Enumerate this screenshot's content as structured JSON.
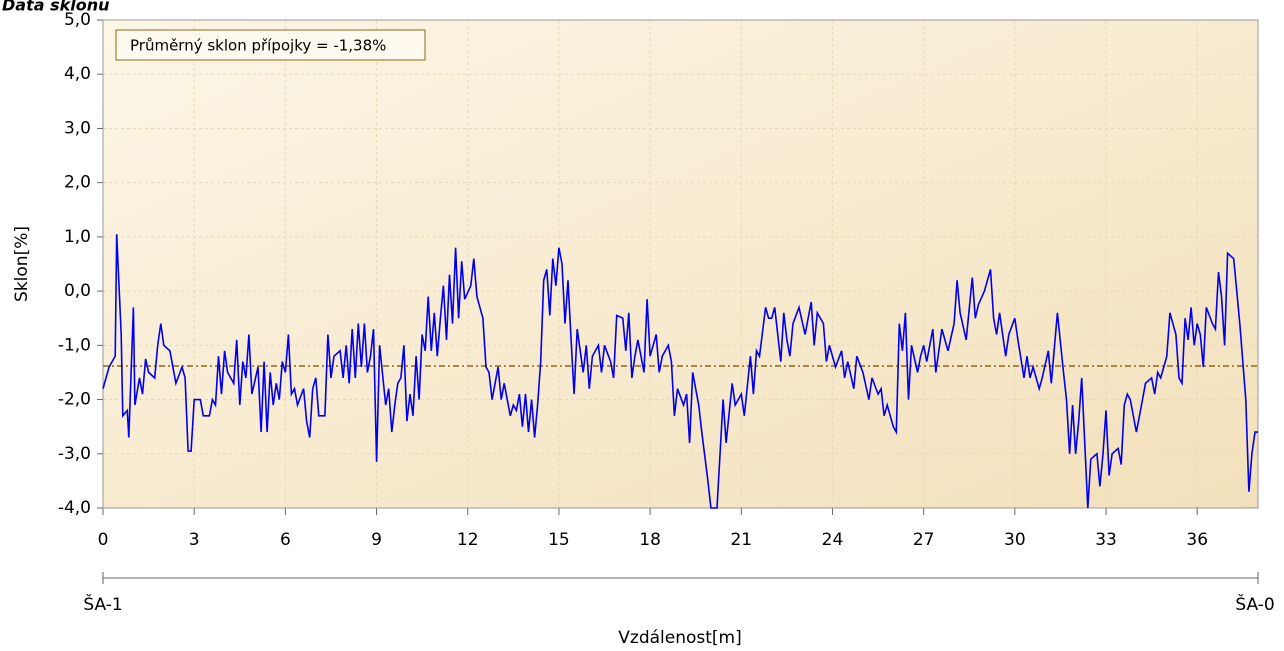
{
  "chart_data": {
    "type": "line",
    "title": "Data sklonu",
    "annotation": "Průměrný sklon přípojky = -1,38%",
    "mean": -1.38,
    "mean_color": "#8b6914",
    "xlabel": "Vzdálenost[m]",
    "ylabel": "Sklon[%]",
    "secondary_x_labels": [
      "ŠA-1",
      "ŠA-0"
    ],
    "xlim": [
      0,
      38
    ],
    "ylim": [
      -4,
      5
    ],
    "xticks": [
      0,
      3,
      6,
      9,
      12,
      15,
      18,
      21,
      24,
      27,
      30,
      33,
      36
    ],
    "yticks": [
      {
        "value": -4,
        "label": "-4,0"
      },
      {
        "value": -3,
        "label": "-3,0"
      },
      {
        "value": -2,
        "label": "-2,0"
      },
      {
        "value": -1,
        "label": "-1,0"
      },
      {
        "value": 0,
        "label": "0,0"
      },
      {
        "value": 1,
        "label": "1,0"
      },
      {
        "value": 2,
        "label": "2,0"
      },
      {
        "value": 3,
        "label": "3,0"
      },
      {
        "value": 4,
        "label": "4,0"
      },
      {
        "value": 5,
        "label": "5,0"
      }
    ],
    "grid": true,
    "x": [
      0,
      0.2,
      0.4,
      0.45,
      0.6,
      0.65,
      0.8,
      0.85,
      1.0,
      1.05,
      1.2,
      1.3,
      1.4,
      1.5,
      1.7,
      1.8,
      1.9,
      2.0,
      2.2,
      2.4,
      2.6,
      2.7,
      2.8,
      2.9,
      3.0,
      3.2,
      3.3,
      3.5,
      3.6,
      3.7,
      3.8,
      3.9,
      4.0,
      4.1,
      4.3,
      4.4,
      4.5,
      4.6,
      4.7,
      4.8,
      4.9,
      5.1,
      5.2,
      5.3,
      5.4,
      5.5,
      5.6,
      5.7,
      5.8,
      5.9,
      6.0,
      6.1,
      6.2,
      6.3,
      6.4,
      6.6,
      6.7,
      6.8,
      6.9,
      7.0,
      7.1,
      7.3,
      7.4,
      7.5,
      7.6,
      7.8,
      7.9,
      8.0,
      8.1,
      8.2,
      8.3,
      8.4,
      8.5,
      8.6,
      8.7,
      8.8,
      8.9,
      9.0,
      9.1,
      9.3,
      9.4,
      9.5,
      9.6,
      9.7,
      9.8,
      9.9,
      10.0,
      10.1,
      10.2,
      10.3,
      10.4,
      10.5,
      10.6,
      10.7,
      10.8,
      10.9,
      11.0,
      11.1,
      11.2,
      11.3,
      11.4,
      11.5,
      11.6,
      11.7,
      11.8,
      11.9,
      12.1,
      12.2,
      12.3,
      12.5,
      12.6,
      12.7,
      12.8,
      12.9,
      13.0,
      13.1,
      13.2,
      13.4,
      13.5,
      13.6,
      13.7,
      13.8,
      13.9,
      14.0,
      14.1,
      14.2,
      14.3,
      14.4,
      14.5,
      14.6,
      14.7,
      14.8,
      14.9,
      15.0,
      15.1,
      15.2,
      15.3,
      15.4,
      15.5,
      15.6,
      15.8,
      15.9,
      16.0,
      16.1,
      16.3,
      16.4,
      16.5,
      16.7,
      16.8,
      16.9,
      17.1,
      17.2,
      17.3,
      17.4,
      17.5,
      17.6,
      17.7,
      17.8,
      17.9,
      18.0,
      18.2,
      18.3,
      18.4,
      18.6,
      18.7,
      18.8,
      18.9,
      19.1,
      19.2,
      19.3,
      19.4,
      19.6,
      19.7,
      19.9,
      20.0,
      20.2,
      20.4,
      20.5,
      20.7,
      20.8,
      21.0,
      21.1,
      21.3,
      21.4,
      21.5,
      21.6,
      21.8,
      21.9,
      22.0,
      22.1,
      22.3,
      22.4,
      22.5,
      22.6,
      22.7,
      22.9,
      23.1,
      23.3,
      23.4,
      23.5,
      23.7,
      23.8,
      23.9,
      24.1,
      24.3,
      24.4,
      24.5,
      24.7,
      24.8,
      25.0,
      25.2,
      25.3,
      25.5,
      25.6,
      25.7,
      25.8,
      26.0,
      26.1,
      26.2,
      26.3,
      26.4,
      26.5,
      26.6,
      26.8,
      26.9,
      27.0,
      27.1,
      27.3,
      27.4,
      27.6,
      27.8,
      28.0,
      28.1,
      28.2,
      28.4,
      28.6,
      28.7,
      28.8,
      29.0,
      29.2,
      29.3,
      29.4,
      29.5,
      29.7,
      29.8,
      30.0,
      30.1,
      30.3,
      30.4,
      30.5,
      30.6,
      30.8,
      30.9,
      31.1,
      31.2,
      31.4,
      31.6,
      31.7,
      31.8,
      31.9,
      32.0,
      32.1,
      32.2,
      32.4,
      32.5,
      32.7,
      32.8,
      32.9,
      33.0,
      33.1,
      33.2,
      33.4,
      33.5,
      33.6,
      33.7,
      33.8,
      34.0,
      34.2,
      34.3,
      34.5,
      34.6,
      34.7,
      34.8,
      35.0,
      35.1,
      35.3,
      35.4,
      35.5,
      35.6,
      35.7,
      35.8,
      35.9,
      36.0,
      36.1,
      36.2,
      36.3,
      36.5,
      36.6,
      36.7,
      36.8,
      36.9,
      37.0,
      37.2,
      37.4,
      37.6,
      37.7,
      37.8,
      37.9,
      38.0
    ],
    "series": [
      {
        "name": "Sklon",
        "color": "#0000ee",
        "values": [
          -1.8,
          -1.4,
          -1.2,
          1.05,
          -0.8,
          -2.3,
          -2.2,
          -2.7,
          -0.3,
          -2.1,
          -1.6,
          -1.9,
          -1.25,
          -1.5,
          -1.6,
          -1.0,
          -0.6,
          -1.0,
          -1.1,
          -1.7,
          -1.4,
          -1.6,
          -2.95,
          -2.95,
          -2.0,
          -2.0,
          -2.3,
          -2.3,
          -2.0,
          -2.1,
          -1.2,
          -1.9,
          -1.1,
          -1.5,
          -1.7,
          -0.9,
          -2.1,
          -1.3,
          -1.6,
          -0.8,
          -1.9,
          -1.4,
          -2.6,
          -1.3,
          -2.6,
          -1.5,
          -2.1,
          -1.7,
          -2.0,
          -1.3,
          -1.5,
          -0.8,
          -1.9,
          -1.8,
          -2.1,
          -1.8,
          -2.4,
          -2.7,
          -1.8,
          -1.6,
          -2.3,
          -2.3,
          -0.8,
          -1.6,
          -1.2,
          -1.1,
          -1.6,
          -1.0,
          -1.7,
          -0.7,
          -1.6,
          -0.6,
          -1.4,
          -0.6,
          -1.5,
          -1.2,
          -0.7,
          -3.15,
          -1.0,
          -2.1,
          -1.8,
          -2.6,
          -2.1,
          -1.7,
          -1.6,
          -1.0,
          -2.4,
          -1.9,
          -2.3,
          -1.2,
          -2.0,
          -0.8,
          -1.1,
          -0.1,
          -1.1,
          -0.4,
          -1.2,
          -0.5,
          0.1,
          -0.9,
          0.3,
          -0.6,
          0.8,
          -0.5,
          0.55,
          -0.15,
          0.1,
          0.6,
          -0.1,
          -0.5,
          -1.4,
          -1.5,
          -2.0,
          -1.7,
          -1.4,
          -2.0,
          -1.7,
          -2.3,
          -2.1,
          -2.2,
          -1.9,
          -2.5,
          -1.9,
          -2.6,
          -2.0,
          -2.7,
          -2.1,
          -1.3,
          0.2,
          0.4,
          -0.45,
          0.6,
          0.1,
          0.8,
          0.5,
          -0.6,
          0.2,
          -0.9,
          -1.9,
          -0.7,
          -1.5,
          -1.0,
          -1.8,
          -1.2,
          -1.0,
          -1.5,
          -1.0,
          -1.3,
          -1.6,
          -0.45,
          -0.5,
          -1.1,
          -0.4,
          -1.6,
          -1.2,
          -0.9,
          -1.2,
          -1.5,
          -0.15,
          -1.2,
          -0.8,
          -1.5,
          -1.2,
          -1.0,
          -1.3,
          -2.3,
          -1.8,
          -2.1,
          -1.9,
          -2.8,
          -1.5,
          -2.1,
          -2.6,
          -3.5,
          -4.0,
          -4.0,
          -2.0,
          -2.8,
          -1.7,
          -2.1,
          -1.9,
          -2.3,
          -1.2,
          -1.9,
          -1.1,
          -1.2,
          -0.3,
          -0.5,
          -0.5,
          -0.3,
          -1.3,
          -0.4,
          -0.9,
          -1.2,
          -0.6,
          -0.3,
          -0.8,
          -0.2,
          -1.0,
          -0.4,
          -0.6,
          -1.3,
          -1.0,
          -1.4,
          -1.1,
          -1.6,
          -1.3,
          -1.8,
          -1.2,
          -1.5,
          -2.0,
          -1.6,
          -1.9,
          -1.8,
          -2.3,
          -2.1,
          -2.5,
          -2.6,
          -0.6,
          -1.1,
          -0.4,
          -2.0,
          -1.0,
          -1.5,
          -1.2,
          -1.0,
          -1.3,
          -0.7,
          -1.5,
          -0.7,
          -1.1,
          -0.6,
          0.2,
          -0.4,
          -0.9,
          0.25,
          -0.5,
          -0.25,
          0.0,
          0.4,
          -0.5,
          -0.8,
          -0.4,
          -1.2,
          -0.8,
          -0.5,
          -0.9,
          -1.6,
          -1.2,
          -1.6,
          -1.4,
          -1.8,
          -1.6,
          -1.1,
          -1.7,
          -0.4,
          -1.5,
          -2.0,
          -3.0,
          -2.1,
          -3.0,
          -2.4,
          -1.6,
          -4.0,
          -3.1,
          -3.0,
          -3.6,
          -3.0,
          -2.2,
          -3.4,
          -3.0,
          -2.9,
          -3.2,
          -2.1,
          -1.9,
          -2.0,
          -2.6,
          -2.0,
          -1.7,
          -1.6,
          -1.9,
          -1.5,
          -1.6,
          -1.2,
          -0.4,
          -0.8,
          -1.6,
          -1.7,
          -0.5,
          -0.9,
          -0.3,
          -1.0,
          -0.6,
          -0.8,
          -1.4,
          -0.3,
          -0.6,
          -0.7,
          0.35,
          -0.1,
          -1.0,
          0.7,
          0.6,
          -0.6,
          -2.0,
          -3.7,
          -3.0,
          -2.6,
          -2.6
        ]
      }
    ]
  }
}
